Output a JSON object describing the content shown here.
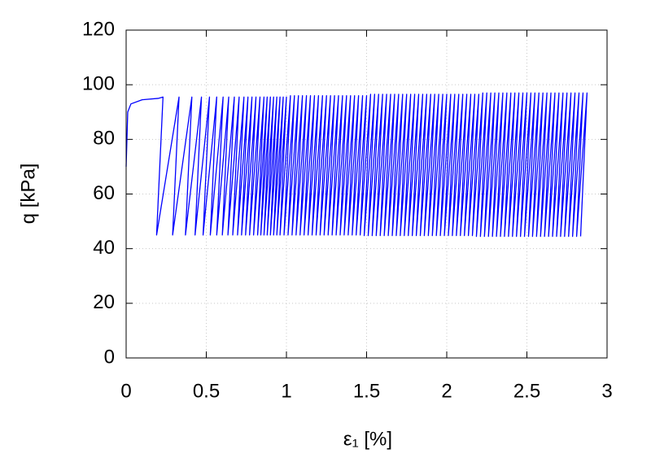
{
  "chart_data": {
    "type": "line",
    "x_label": "ε₁ [%]",
    "y_label": "q [kPa]",
    "color": "#0000ff",
    "grid": true,
    "xlim": [
      0,
      3
    ],
    "xticks": [
      0,
      0.5,
      1,
      1.5,
      2,
      2.5,
      3
    ],
    "ylim": [
      0,
      120
    ],
    "yticks": [
      0,
      20,
      40,
      60,
      80,
      100,
      120
    ],
    "x": [
      0,
      0.01,
      0.03,
      0.1,
      0.2,
      0.23,
      0.19,
      0.33,
      0.29,
      0.41,
      0.37,
      0.47,
      0.43,
      0.52,
      0.48,
      0.565,
      0.525,
      0.605,
      0.565,
      0.64,
      0.6,
      0.675,
      0.635,
      0.705,
      0.665,
      0.735,
      0.695,
      0.76,
      0.72,
      0.785,
      0.745,
      0.81,
      0.77,
      0.835,
      0.795,
      0.86,
      0.82,
      0.88,
      0.84,
      0.9,
      0.86,
      0.92,
      0.88,
      0.94,
      0.9,
      0.96,
      0.92,
      0.98,
      0.94,
      1.0,
      0.96,
      1.025,
      0.985,
      1.05,
      1.01,
      1.075,
      1.035,
      1.1,
      1.06,
      1.125,
      1.085,
      1.15,
      1.11,
      1.175,
      1.135,
      1.2,
      1.16,
      1.225,
      1.185,
      1.25,
      1.21,
      1.275,
      1.235,
      1.3,
      1.26,
      1.325,
      1.285,
      1.35,
      1.31,
      1.375,
      1.335,
      1.4,
      1.36,
      1.425,
      1.385,
      1.45,
      1.41,
      1.475,
      1.435,
      1.5,
      1.46,
      1.525,
      1.485,
      1.55,
      1.51,
      1.575,
      1.535,
      1.6,
      1.56,
      1.625,
      1.585,
      1.65,
      1.61,
      1.675,
      1.635,
      1.7,
      1.66,
      1.725,
      1.685,
      1.75,
      1.71,
      1.775,
      1.735,
      1.8,
      1.76,
      1.825,
      1.785,
      1.85,
      1.81,
      1.875,
      1.835,
      1.9,
      1.86,
      1.925,
      1.885,
      1.95,
      1.91,
      1.975,
      1.935,
      2.0,
      1.96,
      2.025,
      1.985,
      2.05,
      2.01,
      2.075,
      2.035,
      2.1,
      2.06,
      2.125,
      2.085,
      2.15,
      2.11,
      2.175,
      2.135,
      2.2,
      2.16,
      2.225,
      2.185,
      2.25,
      2.21,
      2.275,
      2.235,
      2.3,
      2.26,
      2.325,
      2.285,
      2.35,
      2.31,
      2.375,
      2.335,
      2.4,
      2.36,
      2.425,
      2.385,
      2.45,
      2.41,
      2.475,
      2.435,
      2.5,
      2.46,
      2.525,
      2.485,
      2.55,
      2.51,
      2.575,
      2.535,
      2.6,
      2.56,
      2.625,
      2.585,
      2.65,
      2.61,
      2.675,
      2.635,
      2.7,
      2.66,
      2.725,
      2.685,
      2.75,
      2.71,
      2.775,
      2.735,
      2.8,
      2.76,
      2.825,
      2.785,
      2.85,
      2.81,
      2.875,
      2.835
    ],
    "values": [
      70,
      90,
      93,
      94.5,
      95,
      95.5,
      45,
      95.5,
      45,
      95.5,
      45,
      95.5,
      45,
      95.5,
      45,
      95.5,
      45,
      95.5,
      45,
      95.5,
      45,
      95.5,
      45,
      95.5,
      45,
      95.5,
      45,
      95.5,
      45,
      95.5,
      45,
      95.5,
      45,
      95.5,
      45,
      95.5,
      45,
      95.5,
      45,
      95.5,
      45,
      95.5,
      45,
      95.5,
      45,
      95.5,
      45,
      95.5,
      45,
      95.5,
      45,
      96,
      45,
      96,
      45,
      96,
      45,
      96,
      45,
      96,
      45,
      96,
      45,
      96,
      45,
      96,
      45,
      96,
      45,
      96,
      45,
      96,
      45,
      96,
      45,
      96,
      45,
      96,
      45,
      96,
      45,
      96,
      45,
      96,
      45,
      96,
      45,
      96,
      45,
      96,
      45,
      96.5,
      44.8,
      96.5,
      44.8,
      96.5,
      44.8,
      96.5,
      44.8,
      96.5,
      44.8,
      96.5,
      44.8,
      96.5,
      44.8,
      96.5,
      44.8,
      96.5,
      44.8,
      96.5,
      44.8,
      96.5,
      44.8,
      96.5,
      44.8,
      96.5,
      44.8,
      96.5,
      44.8,
      96.5,
      44.8,
      96.5,
      44.8,
      96.5,
      44.8,
      96.5,
      44.8,
      96.5,
      44.8,
      96.5,
      44.8,
      96.5,
      44.8,
      96.5,
      44.8,
      96.5,
      44.8,
      96.5,
      44.8,
      96.5,
      44.8,
      96.5,
      44.8,
      96.5,
      44.8,
      96.5,
      44.8,
      97,
      44.5,
      97,
      44.5,
      97,
      44.5,
      97,
      44.5,
      97,
      44.5,
      97,
      44.5,
      97,
      44.5,
      97,
      44.5,
      97,
      44.5,
      97,
      44.5,
      97,
      44.5,
      97,
      44.5,
      97,
      44.5,
      97,
      44.5,
      97,
      44.5,
      97,
      44.5,
      97,
      44.5,
      97,
      44.5,
      97,
      44.5,
      97,
      44.5,
      97,
      44.5,
      97,
      44.5,
      97,
      44.5,
      97,
      44.5,
      97,
      44.5,
      97,
      44.5,
      97,
      44.5
    ]
  }
}
